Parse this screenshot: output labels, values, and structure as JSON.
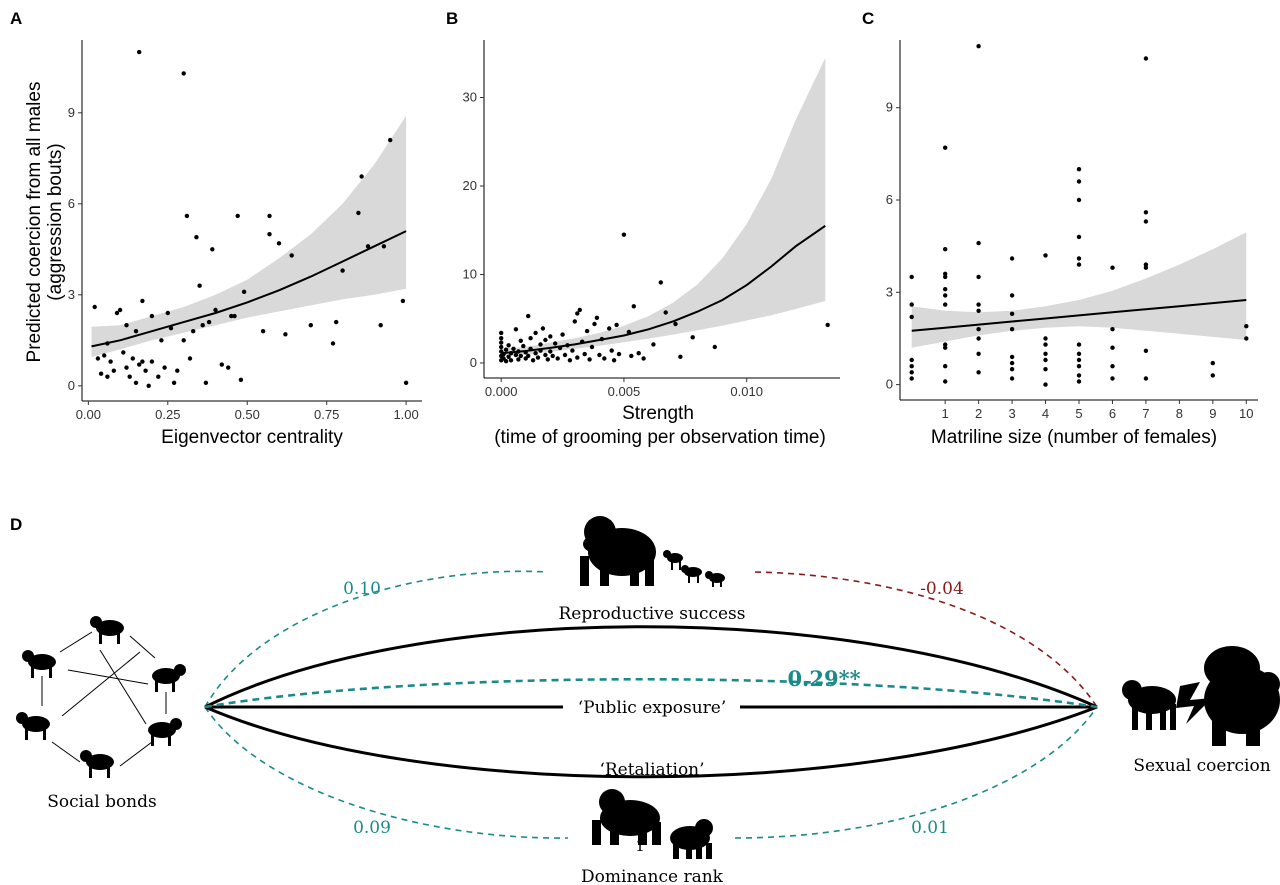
{
  "panel_letters": {
    "a": "A",
    "b": "B",
    "c": "C",
    "d": "D"
  },
  "chart_data": [
    {
      "panel": "A",
      "type": "scatter",
      "xlabel": "Eigenvector centrality",
      "ylabel_line1": "Predicted coercion from all males",
      "ylabel_line2": "(aggression bouts)",
      "xlim": [
        -0.02,
        1.05
      ],
      "ylim": [
        -0.5,
        11.4
      ],
      "xticks": [
        0.0,
        0.25,
        0.5,
        0.75,
        1.0
      ],
      "xtick_labels": [
        "0.00",
        "0.25",
        "0.50",
        "0.75",
        "1.00"
      ],
      "yticks": [
        0,
        3,
        6,
        9
      ],
      "ytick_labels": [
        "0",
        "3",
        "6",
        "9"
      ],
      "fit": {
        "x": [
          0.01,
          0.1,
          0.2,
          0.3,
          0.4,
          0.5,
          0.6,
          0.7,
          0.8,
          0.9,
          1.0
        ],
        "y": [
          1.3,
          1.5,
          1.8,
          2.1,
          2.4,
          2.75,
          3.15,
          3.6,
          4.1,
          4.6,
          5.1
        ],
        "lower": [
          0.95,
          1.2,
          1.5,
          1.75,
          2.0,
          2.25,
          2.45,
          2.65,
          2.85,
          3.0,
          3.2
        ],
        "upper": [
          1.95,
          2.0,
          2.3,
          2.6,
          3.0,
          3.5,
          4.2,
          5.0,
          6.0,
          7.3,
          8.9
        ]
      },
      "points": [
        [
          0.02,
          2.6
        ],
        [
          0.03,
          0.9
        ],
        [
          0.05,
          1.0
        ],
        [
          0.06,
          1.4
        ],
        [
          0.07,
          0.8
        ],
        [
          0.08,
          0.5
        ],
        [
          0.09,
          2.4
        ],
        [
          0.1,
          2.5
        ],
        [
          0.04,
          0.4
        ],
        [
          0.06,
          0.3
        ],
        [
          0.11,
          1.1
        ],
        [
          0.12,
          0.6
        ],
        [
          0.12,
          2.0
        ],
        [
          0.13,
          0.3
        ],
        [
          0.14,
          0.9
        ],
        [
          0.15,
          1.8
        ],
        [
          0.15,
          0.1
        ],
        [
          0.16,
          0.7
        ],
        [
          0.17,
          0.8
        ],
        [
          0.17,
          2.8
        ],
        [
          0.18,
          0.5
        ],
        [
          0.19,
          0.0
        ],
        [
          0.2,
          2.3
        ],
        [
          0.2,
          0.8
        ],
        [
          0.22,
          0.3
        ],
        [
          0.23,
          1.5
        ],
        [
          0.24,
          0.6
        ],
        [
          0.25,
          2.4
        ],
        [
          0.26,
          1.9
        ],
        [
          0.27,
          0.1
        ],
        [
          0.28,
          0.5
        ],
        [
          0.3,
          1.5
        ],
        [
          0.31,
          5.6
        ],
        [
          0.32,
          0.9
        ],
        [
          0.33,
          1.8
        ],
        [
          0.34,
          4.9
        ],
        [
          0.35,
          3.3
        ],
        [
          0.36,
          2.0
        ],
        [
          0.37,
          0.1
        ],
        [
          0.38,
          2.1
        ],
        [
          0.39,
          4.5
        ],
        [
          0.4,
          2.5
        ],
        [
          0.42,
          0.7
        ],
        [
          0.44,
          0.6
        ],
        [
          0.45,
          2.3
        ],
        [
          0.46,
          2.3
        ],
        [
          0.47,
          5.6
        ],
        [
          0.48,
          0.2
        ],
        [
          0.49,
          3.1
        ],
        [
          0.55,
          1.8
        ],
        [
          0.57,
          5.6
        ],
        [
          0.57,
          5.0
        ],
        [
          0.6,
          4.7
        ],
        [
          0.62,
          1.7
        ],
        [
          0.64,
          4.3
        ],
        [
          0.7,
          2.0
        ],
        [
          0.77,
          1.4
        ],
        [
          0.78,
          2.1
        ],
        [
          0.8,
          3.8
        ],
        [
          0.85,
          5.7
        ],
        [
          0.86,
          6.9
        ],
        [
          0.88,
          4.6
        ],
        [
          0.92,
          2.0
        ],
        [
          0.93,
          4.6
        ],
        [
          0.95,
          8.1
        ],
        [
          0.99,
          2.8
        ],
        [
          1.0,
          0.1
        ],
        [
          0.16,
          11.0
        ],
        [
          0.3,
          10.3
        ]
      ]
    },
    {
      "panel": "B",
      "type": "scatter",
      "xlabel_line1": "Strength",
      "xlabel_line2": "(time of grooming per observation time)",
      "xlim": [
        -0.0007,
        0.0138
      ],
      "ylim": [
        -1.7,
        36.5
      ],
      "xticks": [
        0.0,
        0.005,
        0.01
      ],
      "xtick_labels": [
        "0.000",
        "0.005",
        "0.010"
      ],
      "yticks": [
        0,
        10,
        20,
        30
      ],
      "ytick_labels": [
        "0",
        "10",
        "20",
        "30"
      ],
      "fit": {
        "x": [
          0.0,
          0.001,
          0.002,
          0.003,
          0.004,
          0.005,
          0.006,
          0.007,
          0.008,
          0.009,
          0.01,
          0.011,
          0.012,
          0.0132
        ],
        "y": [
          1.1,
          1.35,
          1.7,
          2.1,
          2.6,
          3.1,
          3.8,
          4.7,
          5.8,
          7.1,
          8.8,
          10.9,
          13.2,
          15.5
        ],
        "lower": [
          0.7,
          0.95,
          1.25,
          1.6,
          1.95,
          2.35,
          2.75,
          3.2,
          3.7,
          4.2,
          4.8,
          5.4,
          6.1,
          7.0
        ],
        "upper": [
          1.6,
          1.8,
          2.3,
          2.8,
          3.4,
          4.2,
          5.3,
          6.8,
          8.9,
          11.8,
          15.7,
          20.8,
          27.5,
          34.5
        ]
      },
      "points": [
        [
          0.0,
          0.3
        ],
        [
          0.0,
          0.8
        ],
        [
          0.0,
          1.3
        ],
        [
          0.0,
          1.8
        ],
        [
          0.0,
          2.3
        ],
        [
          0.0,
          2.8
        ],
        [
          0.0,
          3.4
        ],
        [
          0.0001,
          0.5
        ],
        [
          0.0001,
          1.0
        ],
        [
          0.0002,
          0.2
        ],
        [
          0.0002,
          1.5
        ],
        [
          0.0003,
          0.7
        ],
        [
          0.0003,
          2.0
        ],
        [
          0.0004,
          1.1
        ],
        [
          0.0004,
          0.3
        ],
        [
          0.0005,
          1.6
        ],
        [
          0.0006,
          0.9
        ],
        [
          0.0006,
          3.8
        ],
        [
          0.0007,
          0.4
        ],
        [
          0.0007,
          1.3
        ],
        [
          0.0008,
          2.5
        ],
        [
          0.0008,
          0.8
        ],
        [
          0.0009,
          1.9
        ],
        [
          0.001,
          0.5
        ],
        [
          0.001,
          1.2
        ],
        [
          0.0011,
          5.3
        ],
        [
          0.0011,
          0.8
        ],
        [
          0.0012,
          1.6
        ],
        [
          0.0012,
          2.8
        ],
        [
          0.0013,
          0.3
        ],
        [
          0.0014,
          1.1
        ],
        [
          0.0014,
          3.4
        ],
        [
          0.0015,
          0.6
        ],
        [
          0.0016,
          2.1
        ],
        [
          0.0016,
          1.4
        ],
        [
          0.0017,
          3.9
        ],
        [
          0.0018,
          0.9
        ],
        [
          0.0018,
          2.6
        ],
        [
          0.0019,
          0.4
        ],
        [
          0.002,
          1.3
        ],
        [
          0.002,
          3.0
        ],
        [
          0.0021,
          0.8
        ],
        [
          0.0022,
          2.2
        ],
        [
          0.0023,
          0.5
        ],
        [
          0.0024,
          1.7
        ],
        [
          0.0025,
          3.2
        ],
        [
          0.0026,
          0.9
        ],
        [
          0.0027,
          2.0
        ],
        [
          0.0028,
          0.3
        ],
        [
          0.0029,
          1.4
        ],
        [
          0.003,
          4.7
        ],
        [
          0.0031,
          0.6
        ],
        [
          0.0031,
          5.6
        ],
        [
          0.0032,
          6.0
        ],
        [
          0.0033,
          2.4
        ],
        [
          0.0034,
          1.0
        ],
        [
          0.0035,
          3.6
        ],
        [
          0.0036,
          0.4
        ],
        [
          0.0037,
          1.8
        ],
        [
          0.0038,
          4.4
        ],
        [
          0.0039,
          5.1
        ],
        [
          0.004,
          0.9
        ],
        [
          0.0041,
          2.7
        ],
        [
          0.0042,
          0.5
        ],
        [
          0.0044,
          3.9
        ],
        [
          0.0045,
          1.4
        ],
        [
          0.0046,
          0.3
        ],
        [
          0.0047,
          4.3
        ],
        [
          0.0048,
          1.0
        ],
        [
          0.005,
          14.5
        ],
        [
          0.0052,
          3.5
        ],
        [
          0.0053,
          0.8
        ],
        [
          0.0054,
          6.4
        ],
        [
          0.0056,
          1.1
        ],
        [
          0.0058,
          0.5
        ],
        [
          0.0062,
          2.1
        ],
        [
          0.0065,
          9.1
        ],
        [
          0.0067,
          5.7
        ],
        [
          0.0071,
          4.4
        ],
        [
          0.0073,
          0.7
        ],
        [
          0.0078,
          2.9
        ],
        [
          0.0087,
          1.8
        ],
        [
          0.0133,
          4.3
        ]
      ]
    },
    {
      "panel": "C",
      "type": "scatter",
      "xlabel": "Matriline size (number of females)",
      "xlim": [
        -0.35,
        10.35
      ],
      "ylim": [
        -0.5,
        11.2
      ],
      "xticks": [
        1,
        2,
        3,
        4,
        5,
        6,
        7,
        8,
        9,
        10
      ],
      "xtick_labels": [
        "1",
        "2",
        "3",
        "4",
        "5",
        "6",
        "7",
        "8",
        "9",
        "10"
      ],
      "yticks": [
        0,
        3,
        6,
        9
      ],
      "ytick_labels": [
        "0",
        "3",
        "6",
        "9"
      ],
      "fit": {
        "x": [
          0,
          1,
          2,
          3,
          4,
          5,
          6,
          7,
          8,
          9,
          10
        ],
        "y": [
          1.75,
          1.85,
          1.95,
          2.05,
          2.15,
          2.25,
          2.35,
          2.45,
          2.55,
          2.65,
          2.75
        ],
        "lower": [
          1.2,
          1.4,
          1.6,
          1.75,
          1.85,
          1.9,
          1.85,
          1.75,
          1.65,
          1.55,
          1.45
        ],
        "upper": [
          2.55,
          2.4,
          2.35,
          2.4,
          2.55,
          2.75,
          3.05,
          3.45,
          3.9,
          4.4,
          4.95
        ]
      },
      "points": [
        [
          0,
          3.5
        ],
        [
          0,
          2.6
        ],
        [
          0,
          2.2
        ],
        [
          0,
          0.8
        ],
        [
          0,
          0.6
        ],
        [
          0,
          0.4
        ],
        [
          0,
          0.2
        ],
        [
          1,
          7.7
        ],
        [
          1,
          4.4
        ],
        [
          1,
          3.6
        ],
        [
          1,
          3.5
        ],
        [
          1,
          3.1
        ],
        [
          1,
          2.9
        ],
        [
          1,
          2.6
        ],
        [
          1,
          1.3
        ],
        [
          1,
          1.2
        ],
        [
          1,
          0.6
        ],
        [
          1,
          0.1
        ],
        [
          2,
          11.0
        ],
        [
          2,
          4.6
        ],
        [
          2,
          3.5
        ],
        [
          2,
          2.6
        ],
        [
          2,
          2.4
        ],
        [
          2,
          1.8
        ],
        [
          2,
          1.5
        ],
        [
          2,
          1.0
        ],
        [
          2,
          0.4
        ],
        [
          3,
          4.1
        ],
        [
          3,
          2.9
        ],
        [
          3,
          2.3
        ],
        [
          3,
          1.8
        ],
        [
          3,
          0.9
        ],
        [
          3,
          0.7
        ],
        [
          3,
          0.5
        ],
        [
          3,
          0.2
        ],
        [
          4,
          4.2
        ],
        [
          4,
          1.5
        ],
        [
          4,
          1.3
        ],
        [
          4,
          1.0
        ],
        [
          4,
          0.8
        ],
        [
          4,
          0.5
        ],
        [
          4,
          0.0
        ],
        [
          5,
          7.0
        ],
        [
          5,
          6.6
        ],
        [
          5,
          6.0
        ],
        [
          5,
          4.8
        ],
        [
          5,
          4.1
        ],
        [
          5,
          3.9
        ],
        [
          5,
          1.3
        ],
        [
          5,
          1.0
        ],
        [
          5,
          0.8
        ],
        [
          5,
          0.6
        ],
        [
          5,
          0.3
        ],
        [
          5,
          0.1
        ],
        [
          6,
          3.8
        ],
        [
          6,
          1.8
        ],
        [
          6,
          1.2
        ],
        [
          6,
          0.6
        ],
        [
          6,
          0.2
        ],
        [
          7,
          10.6
        ],
        [
          7,
          5.6
        ],
        [
          7,
          5.3
        ],
        [
          7,
          3.9
        ],
        [
          7,
          3.8
        ],
        [
          7,
          1.1
        ],
        [
          7,
          0.2
        ],
        [
          9,
          0.7
        ],
        [
          9,
          0.3
        ],
        [
          10,
          1.9
        ],
        [
          10,
          1.5
        ]
      ]
    }
  ],
  "diagram": {
    "nodes": {
      "social_bonds": "Social bonds",
      "sexual_coercion": "Sexual coercion",
      "reproductive_success": "Reproductive success",
      "dominance_rank": "Dominance rank",
      "public_exposure": "‘Public exposure’",
      "retaliation": "‘Retaliation’"
    },
    "coefficients": {
      "bonds_to_repro": "0.10",
      "repro_to_coercion": "-0.04",
      "direct": "0.29**",
      "bonds_to_rank": "0.09",
      "rank_to_coercion": "0.01",
      "rank_glyph": "1"
    },
    "colors": {
      "teal": "#1a8a8a",
      "darkred": "#8b1a1a",
      "black": "#000000",
      "band": "#d9d9d9"
    }
  }
}
